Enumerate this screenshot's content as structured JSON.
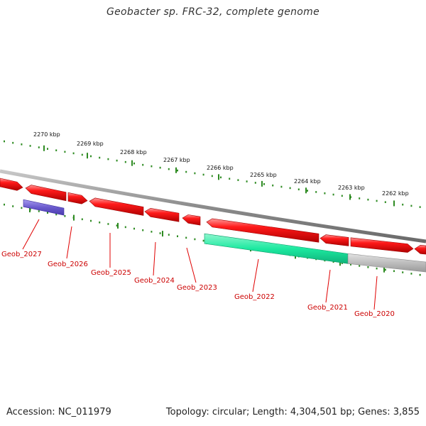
{
  "title": "Geobacter sp. FRC-32, complete genome",
  "footer": {
    "accession": "Accession: NC_011979",
    "summary": "Topology: circular; Length: 4,304,501 bp; Genes: 3,855"
  },
  "colors": {
    "forward_gene": "#ff1a1a",
    "reverse_gene": "#ff1a1a",
    "purple_feature": "#6a5acd",
    "green_feature": "#1de9a0",
    "grey_feature": "#bdbdbd",
    "backbone": "#8c8c8c",
    "tick": "#2e8b22",
    "label_line": "#e00000",
    "label_text": "#cc0000"
  },
  "scale_labels": [
    "2270 kbp",
    "2269 kbp",
    "2268 kbp",
    "2267 kbp",
    "2266 kbp",
    "2265 kbp",
    "2264 kbp",
    "2263 kbp",
    "2262 kbp"
  ],
  "gene_labels": [
    "Geob_2027",
    "Geob_2026",
    "Geob_2025",
    "Geob_2024",
    "Geob_2023",
    "Geob_2022",
    "Geob_2021",
    "Geob_2020"
  ],
  "arrows": [
    {
      "from": 0,
      "to": 32,
      "dir": "right"
    },
    {
      "from": 36,
      "to": 93,
      "dir": "left"
    },
    {
      "from": 96,
      "to": 123,
      "dir": "right"
    },
    {
      "from": 126,
      "to": 202,
      "dir": "left"
    },
    {
      "from": 204,
      "to": 252,
      "dir": "left"
    },
    {
      "from": 257,
      "to": 282,
      "dir": "left"
    },
    {
      "from": 291,
      "to": 449,
      "dir": "left"
    },
    {
      "from": 451,
      "to": 491,
      "dir": "left"
    },
    {
      "from": 494,
      "to": 582,
      "dir": "right"
    },
    {
      "from": 584,
      "to": 600,
      "dir": "left"
    }
  ],
  "features": [
    {
      "name": "purple",
      "from": 33,
      "to": 90
    },
    {
      "name": "green",
      "from": 288,
      "to": 490
    },
    {
      "name": "grey",
      "from": 490,
      "to": 600
    }
  ]
}
